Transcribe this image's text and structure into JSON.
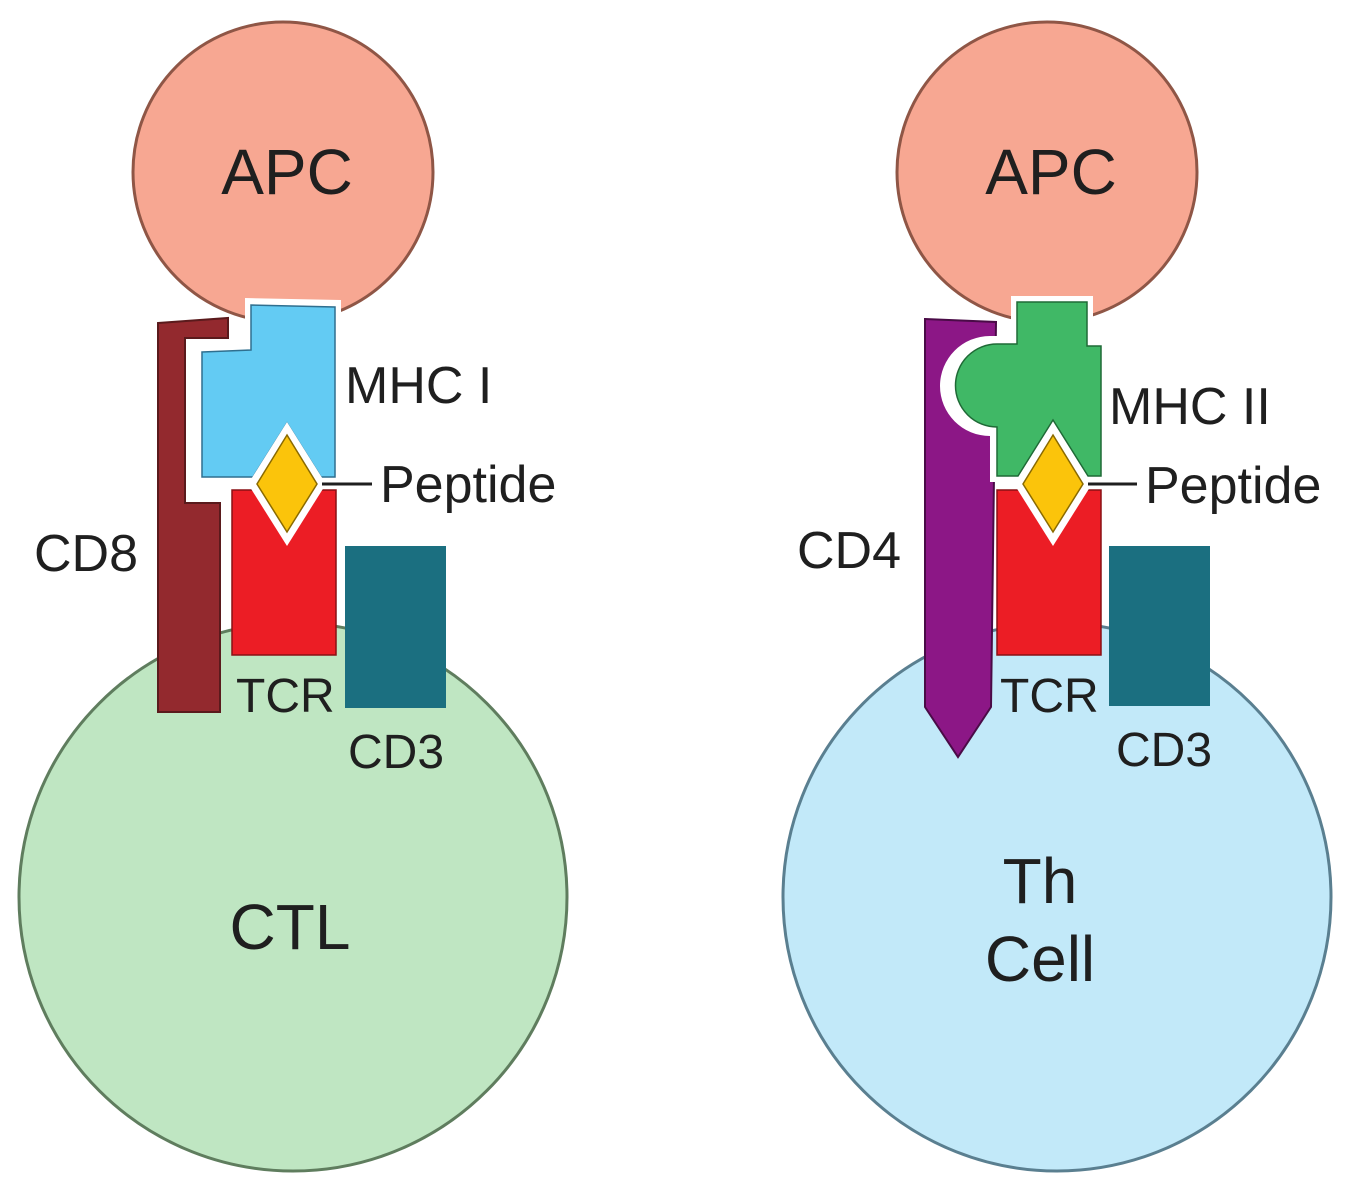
{
  "colors": {
    "apc": "#f7a792",
    "ctl": "#bfe6c2",
    "th_cell": "#c2e9f9",
    "mhc1": "#63cbf3",
    "mhc2": "#40b866",
    "cd8": "#93292e",
    "cd4": "#8c1786",
    "tcr": "#ec1d25",
    "cd3": "#1b6f80",
    "peptide": "#fbc40b"
  },
  "left_panel": {
    "apc_label": "APC",
    "cell_label": "CTL",
    "coreceptor_label": "CD8",
    "mhc_label": "MHC I",
    "peptide_label": "Peptide",
    "tcr_label": "TCR",
    "cd3_label": "CD3"
  },
  "right_panel": {
    "apc_label": "APC",
    "cell_label_line1": "Th",
    "cell_label_line2": "Cell",
    "coreceptor_label": "CD4",
    "mhc_label": "MHC II",
    "peptide_label": "Peptide",
    "tcr_label": "TCR",
    "cd3_label": "CD3"
  }
}
